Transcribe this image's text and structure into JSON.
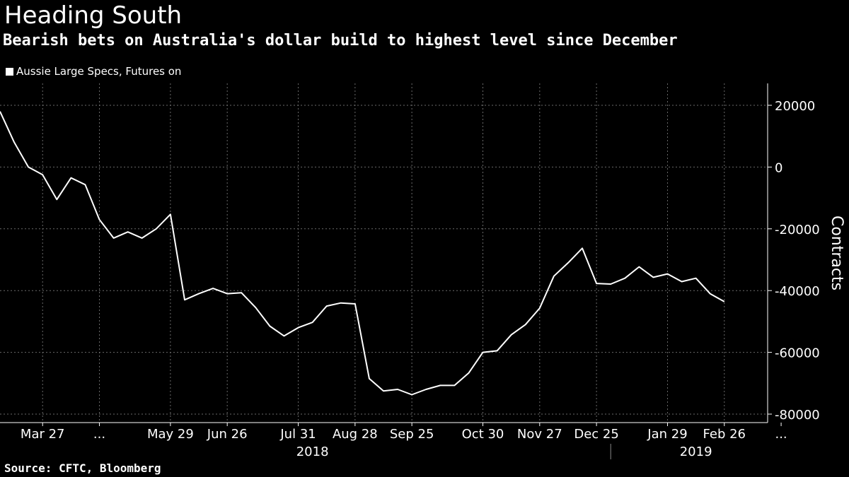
{
  "title": "Heading South",
  "subtitle": "Bearish bets on Australia's dollar build to highest level since December",
  "source": "Source: CFTC, Bloomberg",
  "chart_data": {
    "type": "line",
    "title": "Heading South",
    "subtitle": "Bearish bets on Australia's dollar build to highest level since December",
    "ylabel": "Contracts",
    "ylim": [
      -80000,
      20000
    ],
    "yticks": [
      20000,
      0,
      -20000,
      -40000,
      -60000,
      -80000
    ],
    "ytick_labels": [
      "20000",
      "0",
      "-20000",
      "-40000",
      "-60000",
      "-80000"
    ],
    "grid": true,
    "legend_position": "top-left",
    "x_start": "2018-03-06",
    "x_end": "2019-03-19",
    "xtick_labels": [
      {
        "date": "2018-03-27",
        "label": "Mar 27"
      },
      {
        "date": "2018-04-24",
        "label": "..."
      },
      {
        "date": "2018-05-29",
        "label": "May 29"
      },
      {
        "date": "2018-06-26",
        "label": "Jun 26"
      },
      {
        "date": "2018-07-31",
        "label": "Jul 31"
      },
      {
        "date": "2018-08-28",
        "label": "Aug 28"
      },
      {
        "date": "2018-09-25",
        "label": "Sep 25"
      },
      {
        "date": "2018-10-30",
        "label": "Oct 30"
      },
      {
        "date": "2018-11-27",
        "label": "Nov 27"
      },
      {
        "date": "2018-12-25",
        "label": "Dec 25"
      },
      {
        "date": "2019-01-29",
        "label": "Jan 29"
      },
      {
        "date": "2019-02-26",
        "label": "Feb 26"
      },
      {
        "date": "2019-03-26",
        "label": "..."
      }
    ],
    "year_labels": [
      {
        "date": "2018-08-07",
        "label": "2018"
      },
      {
        "date": "2019-02-12",
        "label": "2019"
      }
    ],
    "year_separator": "2019-01-01",
    "series": [
      {
        "name": "Aussie Large Specs, Futures on",
        "color": "#ffffff",
        "x": [
          "2018-03-06",
          "2018-03-13",
          "2018-03-20",
          "2018-03-27",
          "2018-04-03",
          "2018-04-10",
          "2018-04-17",
          "2018-04-24",
          "2018-05-01",
          "2018-05-08",
          "2018-05-15",
          "2018-05-22",
          "2018-05-29",
          "2018-06-05",
          "2018-06-12",
          "2018-06-19",
          "2018-06-26",
          "2018-07-03",
          "2018-07-10",
          "2018-07-17",
          "2018-07-24",
          "2018-07-31",
          "2018-08-07",
          "2018-08-14",
          "2018-08-21",
          "2018-08-28",
          "2018-09-04",
          "2018-09-11",
          "2018-09-18",
          "2018-09-25",
          "2018-10-02",
          "2018-10-09",
          "2018-10-16",
          "2018-10-23",
          "2018-10-30",
          "2018-11-06",
          "2018-11-13",
          "2018-11-20",
          "2018-11-27",
          "2018-12-04",
          "2018-12-11",
          "2018-12-18",
          "2018-12-25",
          "2019-01-01",
          "2019-01-08",
          "2019-01-15",
          "2019-01-22",
          "2019-01-29",
          "2019-02-05",
          "2019-02-12",
          "2019-02-19",
          "2019-02-26",
          "2019-03-05",
          "2019-03-12"
        ],
        "values": [
          18000,
          8000,
          0,
          -2500,
          -10500,
          -3500,
          -5700,
          -17000,
          -23000,
          -21000,
          -23000,
          -20000,
          -15300,
          -43000,
          -41000,
          -39300,
          -41000,
          -40700,
          -45500,
          -51500,
          -54700,
          -52000,
          -50300,
          -45000,
          -44000,
          -44300,
          -68500,
          -72500,
          -72000,
          -73700,
          -72000,
          -70700,
          -70700,
          -66700,
          -60000,
          -59500,
          -54300,
          -51000,
          -45700,
          -35300,
          -31000,
          -26300,
          -37700,
          -37900,
          -36000,
          -32300,
          -35700,
          -34600,
          -37100,
          -36000,
          -41000,
          -43600,
          null,
          null
        ]
      }
    ]
  }
}
